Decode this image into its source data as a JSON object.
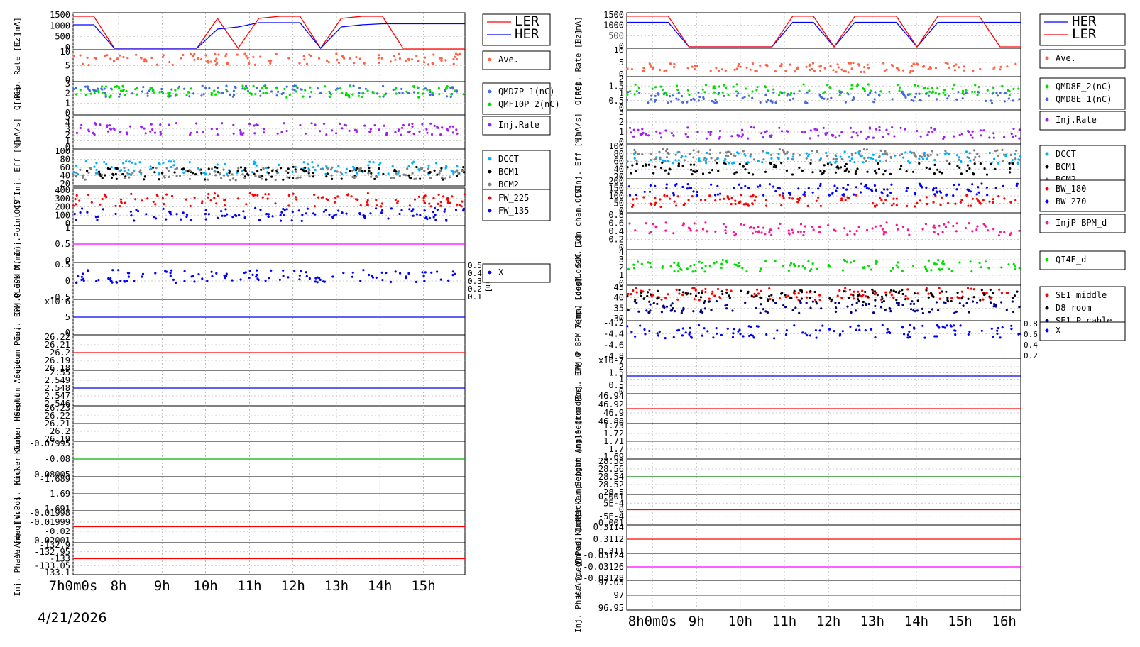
{
  "date_label": "4/21/2026",
  "colors": {
    "red": "#ff0000",
    "blue": "#0000ff",
    "green": "#00b400",
    "black": "#000000",
    "orange": "#ffa000",
    "purple": "#a020f0",
    "pink": "#ff1493",
    "salmon": "#ff6347",
    "cyan": "#00b0ff",
    "gray": "#808080",
    "dblue": "#000080",
    "steel": "#4169e1",
    "lime": "#00e000",
    "magenta": "#ff00ff",
    "darkgreen": "#008000"
  },
  "chart_data": [
    {
      "type": "line",
      "name": "LER",
      "time_axis": {
        "ticks": [
          "7h0m0s",
          "8h",
          "9h",
          "10h",
          "11h",
          "12h",
          "13h",
          "14h",
          "15h"
        ],
        "range": [
          "07:00",
          "16:05"
        ]
      },
      "panels": [
        {
          "ylabel": "I [mA]",
          "yticks": [
            "1500",
            "1000",
            "500",
            "0"
          ],
          "legend": [
            "LER",
            "HER"
          ],
          "legend_colors": [
            "red",
            "blue"
          ],
          "series": [
            {
              "name": "LER",
              "color": "red",
              "values": [
                1500,
                1500,
                0,
                0,
                0,
                0,
                0,
                1400,
                0,
                1400,
                1500,
                1500,
                0,
                1400,
                1500,
                1500,
                0,
                0,
                0,
                0
              ]
            },
            {
              "name": "HER",
              "color": "blue",
              "values": [
                1100,
                1100,
                0,
                0,
                0,
                0,
                0,
                900,
                1000,
                1200,
                1200,
                1200,
                0,
                1000,
                1100,
                1150,
                1150,
                1150,
                1150,
                1150
              ]
            }
          ]
        },
        {
          "ylabel": "Rep. Rate [Hz]",
          "yticks": [
            "10",
            "5",
            "0"
          ],
          "legend": [
            "Ave."
          ],
          "legend_colors": [
            "salmon"
          ]
        },
        {
          "ylabel": "Q[nC]",
          "yticks": [
            "3",
            "2",
            "1",
            "0"
          ],
          "legend": [
            "QMD7P_1(nC)",
            "QMF10P_2(nC)"
          ],
          "legend_colors": [
            "steel",
            "lime"
          ]
        },
        {
          "ylabel": "[mA/s]",
          "yticks": [
            "5",
            "4",
            "3",
            "2",
            "1",
            "0"
          ],
          "legend": [
            "Inj.Rate"
          ],
          "legend_colors": [
            "purple"
          ]
        },
        {
          "ylabel": "Inj. Eff [%]",
          "yticks": [
            "100",
            "80",
            "60",
            "40",
            "20"
          ],
          "legend": [
            "DCCT",
            "BCM1",
            "BCM2"
          ],
          "legend_colors": [
            "cyan",
            "black",
            "gray"
          ]
        },
        {
          "ylabel": "OCS",
          "yticks": [
            "400",
            "300",
            "200",
            "100",
            "0"
          ],
          "legend": [
            "FW_225",
            "FW_135"
          ],
          "legend_colors": [
            "red",
            "blue"
          ]
        },
        {
          "ylabel": "Loss M. Inj.Point [V]",
          "yticks": [
            "1",
            "0.5",
            "0"
          ],
          "legend": [],
          "legend_colors": []
        },
        {
          "ylabel": "Inj.P BPM X[mm]",
          "yticks": [
            "0.5",
            "0",
            "-0.5"
          ],
          "right_label": "Y[mm]",
          "right_ticks": [
            "0.5",
            "0.4",
            "0.3",
            "0.2",
            "0.1"
          ],
          "legend": [
            "X"
          ],
          "legend_colors": [
            "blue"
          ]
        },
        {
          "ylabel": "Inj. BPM Q",
          "yticks": [
            "x10-6",
            "5",
            "0"
          ],
          "legend": [],
          "legend_colors": []
        },
        {
          "ylabel": "Septum Pos.",
          "yticks": [
            "26.22",
            "26.21",
            "26.2",
            "26.19",
            "26.18"
          ],
          "legend": [],
          "legend_colors": []
        },
        {
          "ylabel": "Septum Angle",
          "yticks": [
            "2.55",
            "2.549",
            "2.548",
            "2.547",
            "2.546"
          ],
          "legend": [],
          "legend_colors": []
        },
        {
          "ylabel": "Kicker Height",
          "yticks": [
            "26.23",
            "26.22",
            "26.21",
            "26.2",
            "26.19"
          ],
          "legend": [],
          "legend_colors": []
        },
        {
          "ylabel": "Kicker Jump",
          "yticks": [
            "-0.07995",
            "-0.08",
            "-0.08005"
          ],
          "legend": [],
          "legend_colors": []
        },
        {
          "ylabel": "V.Pos. [mm]",
          "yticks": [
            "-1.689",
            "-1.69",
            "-1.691"
          ],
          "legend": [],
          "legend_colors": []
        },
        {
          "ylabel": "V.Ang. [mrad]",
          "yticks": [
            "-0.01998",
            "-0.01999",
            "-0.02",
            "-0.02001"
          ],
          "legend": [],
          "legend_colors": []
        },
        {
          "ylabel": "Inj. Phase [deg]",
          "yticks": [
            "-132.9",
            "-132.95",
            "-133",
            "-133.05",
            "-133.1"
          ],
          "legend": [],
          "legend_colors": []
        }
      ]
    },
    {
      "type": "line",
      "name": "HER",
      "time_axis": {
        "ticks": [
          "8h0m0s",
          "9h",
          "10h",
          "11h",
          "12h",
          "13h",
          "14h",
          "15h",
          "16h"
        ],
        "range": [
          "07:05",
          "16:00"
        ]
      },
      "panels": [
        {
          "ylabel": "I [mA]",
          "yticks": [
            "1500",
            "1000",
            "500",
            "0"
          ],
          "legend": [
            "HER",
            "LER"
          ],
          "legend_colors": [
            "blue",
            "red"
          ],
          "series": [
            {
              "name": "HER",
              "color": "blue",
              "values": [
                1200,
                1200,
                1200,
                0,
                0,
                0,
                0,
                0,
                1200,
                1200,
                0,
                1200,
                1200,
                1200,
                0,
                1200,
                1200,
                1200,
                1200,
                1200
              ]
            },
            {
              "name": "LER",
              "color": "red",
              "values": [
                1500,
                1500,
                1500,
                0,
                0,
                0,
                0,
                0,
                1500,
                1500,
                0,
                1500,
                1500,
                1500,
                0,
                1500,
                1500,
                1500,
                0,
                0
              ]
            }
          ]
        },
        {
          "ylabel": "Rep. Rate [Hz]",
          "yticks": [
            "10",
            "5",
            "0"
          ],
          "legend": [
            "Ave."
          ],
          "legend_colors": [
            "salmon"
          ]
        },
        {
          "ylabel": "Q[nC]",
          "yticks": [
            "2",
            "1.5",
            "1",
            "0.5",
            "0"
          ],
          "legend": [
            "QMD8E_2(nC)",
            "QMD8E_1(nC)"
          ],
          "legend_colors": [
            "lime",
            "steel"
          ]
        },
        {
          "ylabel": "[mA/s]",
          "yticks": [
            "3",
            "2",
            "1",
            "0"
          ],
          "legend": [
            "Inj.Rate"
          ],
          "legend_colors": [
            "purple"
          ]
        },
        {
          "ylabel": "Inj. Eff [%]",
          "yticks": [
            "100",
            "80",
            "60",
            "40",
            "20"
          ],
          "legend": [
            "DCCT",
            "BCM1",
            "BCM2"
          ],
          "legend_colors": [
            "cyan",
            "black",
            "gray"
          ]
        },
        {
          "ylabel": "OCS",
          "yticks": [
            "200",
            "150",
            "100",
            "50",
            "0"
          ],
          "legend": [
            "BW_180",
            "BW_270"
          ],
          "legend_colors": [
            "red",
            "blue"
          ]
        },
        {
          "ylabel": "LossM. Ion cham. [V]",
          "yticks": [
            "0.8",
            "0.6",
            "0.4",
            "0.2",
            "0"
          ],
          "legend": [
            "InjP BPM_d"
          ],
          "legend_colors": [
            "pink"
          ]
        },
        {
          "ylabel": "LossM. SiC [V]",
          "yticks": [
            "4",
            "3",
            "2",
            "1",
            "0"
          ],
          "legend": [
            "QI4E_d"
          ],
          "legend_colors": [
            "lime"
          ]
        },
        {
          "ylabel": "Temp. [deg]",
          "yticks": [
            "45",
            "40",
            "35",
            "30"
          ],
          "legend": [
            "SE1 middle",
            "D8 room",
            "SE1 P.cable"
          ],
          "legend_colors": [
            "red",
            "black",
            "dblue"
          ]
        },
        {
          "ylabel": "Inj.P BPM X[mm]",
          "yticks": [
            "-4.2",
            "-4.4",
            "-4.6",
            "-4.8"
          ],
          "right_ticks": [
            "0.8",
            "0.6",
            "0.4",
            "0.2"
          ],
          "legend": [
            "X"
          ],
          "legend_colors": [
            "blue"
          ]
        },
        {
          "ylabel": "Inj. BPM Q",
          "yticks": [
            "x10-7",
            "2",
            "1.5",
            "1",
            "0.5",
            "0"
          ],
          "legend": [],
          "legend_colors": []
        },
        {
          "ylabel": "Septum Pos.",
          "yticks": [
            "46.94",
            "46.92",
            "46.9",
            "46.88"
          ],
          "legend": [],
          "legend_colors": []
        },
        {
          "ylabel": "Septum Angle [mrad]",
          "yticks": [
            "1.73",
            "1.72",
            "1.71",
            "1.7",
            "1.69"
          ],
          "legend": [],
          "legend_colors": []
        },
        {
          "ylabel": "Kicker Height [mm]",
          "yticks": [
            "28.58",
            "28.56",
            "28.54",
            "28.52",
            "28.5"
          ],
          "legend": [],
          "legend_colors": []
        },
        {
          "ylabel": "Kicker Jump",
          "yticks": [
            "0.001",
            "5E-4",
            "0",
            "-5E-4",
            "-0.001"
          ],
          "legend": [],
          "legend_colors": []
        },
        {
          "ylabel": "V.Pos. [mm]",
          "yticks": [
            "0.3114",
            "0.3112",
            "0.311"
          ],
          "legend": [],
          "legend_colors": []
        },
        {
          "ylabel": "V.Ang. [mrad]",
          "yticks": [
            "-0.03124",
            "-0.03126",
            "-0.03128"
          ],
          "legend": [],
          "legend_colors": []
        },
        {
          "ylabel": "Inj. Phase [deg]",
          "yticks": [
            "97.05",
            "97",
            "96.95"
          ],
          "legend": [],
          "legend_colors": []
        }
      ]
    }
  ]
}
